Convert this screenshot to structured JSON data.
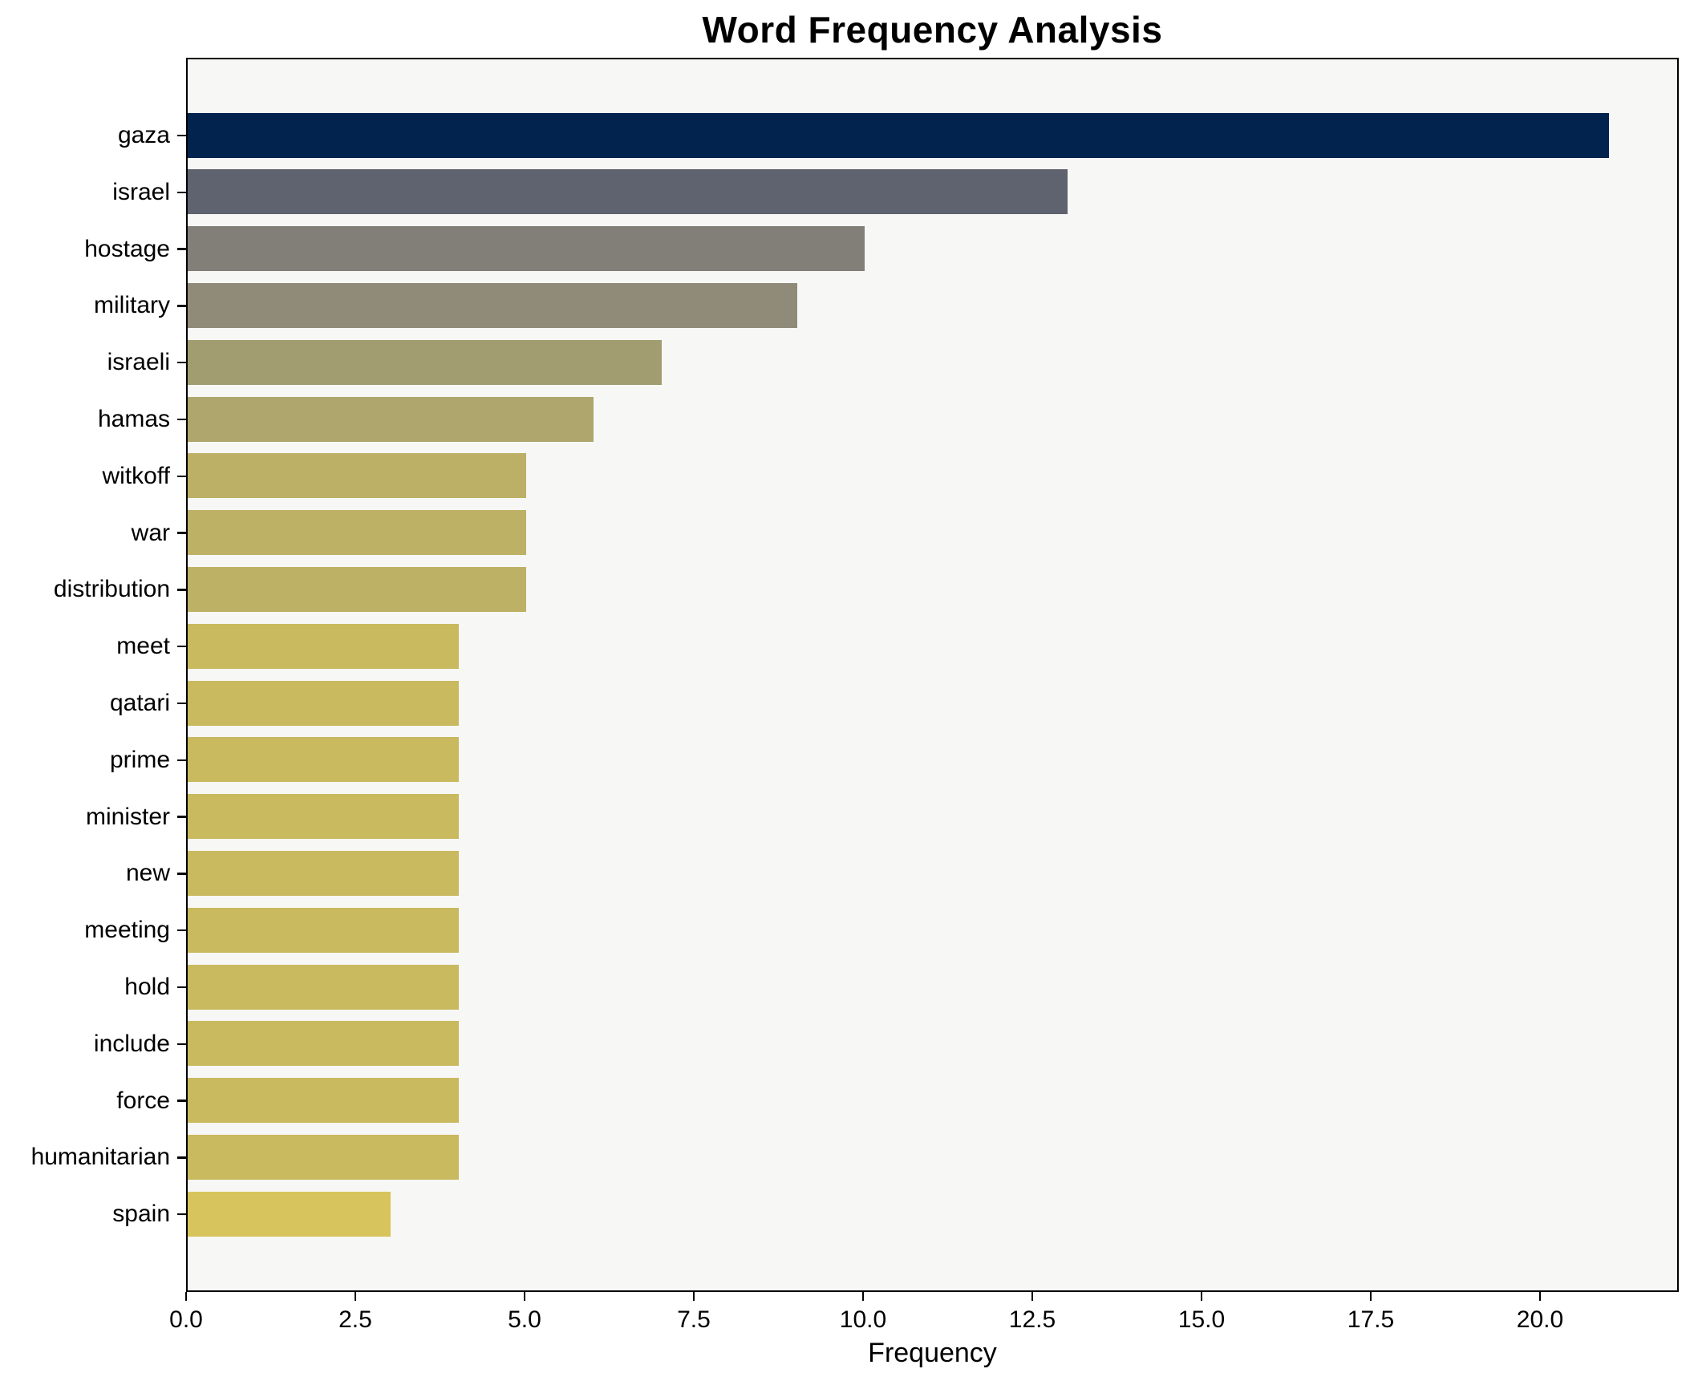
{
  "figure": {
    "background": "#FFFFFF",
    "plot_background": "#F7F7F5",
    "spine_color": "#000000",
    "text_color": "#000000"
  },
  "chart_data": {
    "type": "bar",
    "orientation": "horizontal",
    "title": "Word Frequency Analysis",
    "xlabel": "Frequency",
    "ylabel": "",
    "categories": [
      "gaza",
      "israel",
      "hostage",
      "military",
      "israeli",
      "hamas",
      "witkoff",
      "war",
      "distribution",
      "meet",
      "qatari",
      "prime",
      "minister",
      "new",
      "meeting",
      "hold",
      "include",
      "force",
      "humanitarian",
      "spain"
    ],
    "values": [
      21,
      13,
      10,
      9,
      7,
      6,
      5,
      5,
      5,
      4,
      4,
      4,
      4,
      4,
      4,
      4,
      4,
      4,
      4,
      3
    ],
    "bar_colors": [
      "#02234E",
      "#5F626F",
      "#817F78",
      "#908B79",
      "#A29C71",
      "#AEA66C",
      "#BCB066",
      "#BDB166",
      "#BDB166",
      "#C9B95F",
      "#C9B95F",
      "#C9B95F",
      "#C9B95F",
      "#C9B95F",
      "#C9B95F",
      "#C9B95F",
      "#C9B95F",
      "#C9B95F",
      "#C9B95F",
      "#D8C45C"
    ],
    "xtick_values": [
      0,
      2.5,
      5,
      7.5,
      10,
      12.5,
      15,
      17.5,
      20
    ],
    "xtick_labels": [
      "0.0",
      "2.5",
      "5.0",
      "7.5",
      "10.0",
      "12.5",
      "15.0",
      "17.5",
      "20.0"
    ],
    "xlim": [
      0,
      22.05
    ],
    "grid": false,
    "legend": false
  }
}
